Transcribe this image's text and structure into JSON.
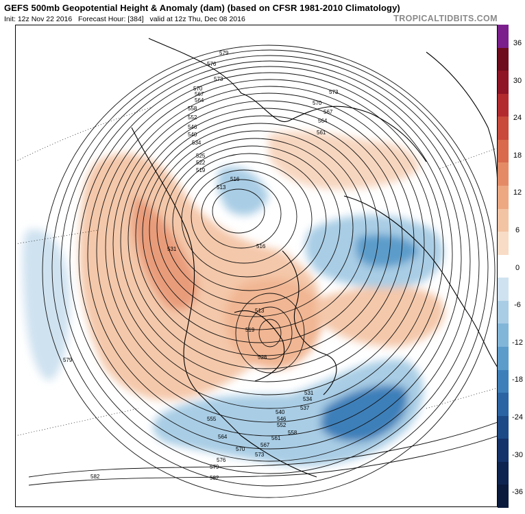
{
  "header": {
    "title": "GEFS 500mb Geopotential Height & Anomaly (dam) (based on CFSR 1981-2010 Climatology)",
    "init": "Init: 12z Nov 22 2016",
    "forecast_hour": "Forecast Hour: [384]",
    "valid": "valid at 12z Thu, Dec 08 2016",
    "watermark": "TROPICALTIDBITS.COM"
  },
  "map": {
    "projection": "polar stereographic, North America centered",
    "contour_labels": [
      "579",
      "576",
      "573",
      "570",
      "567",
      "564",
      "558",
      "552",
      "546",
      "540",
      "534",
      "525",
      "522",
      "519",
      "516",
      "513",
      "516",
      "531",
      "579",
      "582",
      "582",
      "573",
      "570",
      "567",
      "564",
      "561",
      "513",
      "519",
      "528",
      "531",
      "534",
      "537",
      "540",
      "546",
      "552",
      "555",
      "558",
      "561",
      "564",
      "567",
      "570",
      "573",
      "576",
      "579"
    ],
    "anomaly_features": [
      {
        "region": "Western North America / Alaska",
        "sign": "positive"
      },
      {
        "region": "Northern Canada / Hudson Bay",
        "sign": "positive"
      },
      {
        "region": "Greenland / North Atlantic",
        "sign": "positive"
      },
      {
        "region": "Siberia / Eastern Asia",
        "sign": "negative"
      },
      {
        "region": "Eastern North America / Western Atlantic",
        "sign": "negative"
      },
      {
        "region": "Central North Pacific",
        "sign": "negative"
      }
    ]
  },
  "colorbar": {
    "ticks": [
      "36",
      "30",
      "24",
      "18",
      "12",
      "6",
      "0",
      "-6",
      "-12",
      "-18",
      "-24",
      "-30",
      "-36"
    ],
    "colors": [
      "#7b1f8c",
      "#6e0b1d",
      "#8f1425",
      "#b32a2e",
      "#c9493a",
      "#d96a4c",
      "#e48b66",
      "#eda882",
      "#f3c4a3",
      "#f8dcc6",
      "#ffffff",
      "#cfe2f0",
      "#a9cde5",
      "#82b6d9",
      "#5c9ccb",
      "#3d7fb9",
      "#2a64a2",
      "#1c4a87",
      "#14336a",
      "#0e2450",
      "#0a1a3c"
    ]
  }
}
